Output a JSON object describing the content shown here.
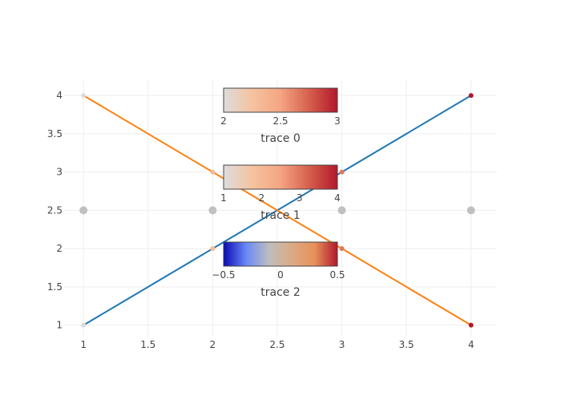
{
  "chart_data": {
    "type": "scatter",
    "xlim": [
      0.85,
      4.2
    ],
    "ylim": [
      0.85,
      4.2
    ],
    "x_ticks": [
      1,
      1.5,
      2,
      2.5,
      3,
      3.5,
      4
    ],
    "y_ticks": [
      1,
      1.5,
      2,
      2.5,
      3,
      3.5,
      4
    ],
    "x_tick_labels": [
      "1",
      "1.5",
      "2",
      "2.5",
      "3",
      "3.5",
      "4"
    ],
    "y_tick_labels": [
      "1",
      "1.5",
      "2",
      "2.5",
      "3",
      "3.5",
      "4"
    ],
    "grid": true,
    "series": [
      {
        "name": "trace 0",
        "mode": "lines+markers",
        "line_color": "#1f77b4",
        "x": [
          1,
          2,
          3,
          4
        ],
        "y": [
          1,
          2,
          3,
          4
        ],
        "marker_color_values": [
          1,
          2,
          3,
          4
        ],
        "colorscale": "reds",
        "marker_size": "small"
      },
      {
        "name": "trace 1",
        "mode": "lines+markers",
        "line_color": "#ff7f0e",
        "x": [
          1,
          2,
          3,
          4
        ],
        "y": [
          4,
          3,
          2,
          1
        ],
        "marker_color_values": [
          1,
          2,
          3,
          4
        ],
        "colorscale": "reds",
        "marker_size": "small"
      },
      {
        "name": "trace 2",
        "mode": "markers",
        "x": [
          1,
          2,
          3,
          4
        ],
        "y": [
          2.5,
          2.5,
          2.5,
          2.5
        ],
        "marker_color": "#c0c0c0",
        "marker_size": "large"
      }
    ],
    "colorbars": [
      {
        "title": "trace 0",
        "range": [
          2,
          3
        ],
        "ticks": [
          2,
          2.5,
          3
        ],
        "tick_labels": [
          "2",
          "2.5",
          "3"
        ],
        "colorscale": "reds"
      },
      {
        "title": "trace 1",
        "range": [
          1,
          4
        ],
        "ticks": [
          1,
          2,
          3,
          4
        ],
        "tick_labels": [
          "1",
          "2",
          "3",
          "4"
        ],
        "colorscale": "reds"
      },
      {
        "title": "trace 2",
        "range": [
          -0.5,
          0.5
        ],
        "ticks": [
          -0.5,
          0,
          0.5
        ],
        "tick_labels": [
          "−0.5",
          "0",
          "0.5"
        ],
        "colorscale": "rdbu"
      }
    ],
    "colorscales": {
      "reds": [
        "#dcdcdc",
        "#f5c39f",
        "#f4a582",
        "#d6604d",
        "#b2182b"
      ],
      "rdbu": [
        "#0a0ab4",
        "#6a89f7",
        "#bebebe",
        "#dcaa84",
        "#e6915a",
        "#b2182b"
      ]
    }
  }
}
